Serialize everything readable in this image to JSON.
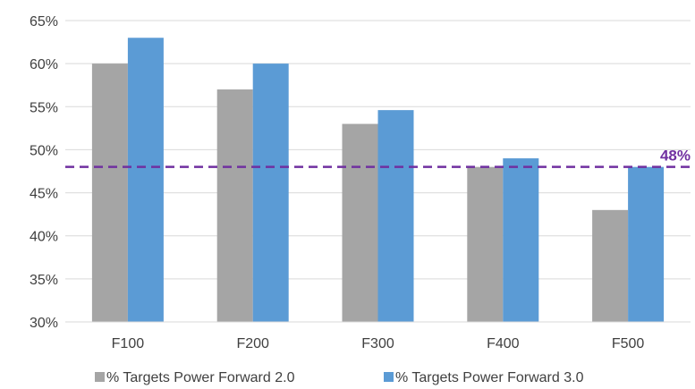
{
  "chart_data": {
    "type": "bar",
    "categories": [
      "F100",
      "F200",
      "F300",
      "F400",
      "F500"
    ],
    "series": [
      {
        "name": "% Targets Power Forward 2.0",
        "values": [
          60,
          57,
          53,
          48,
          43
        ],
        "color": "#a5a5a5"
      },
      {
        "name": "% Targets Power Forward 3.0",
        "values": [
          63,
          60,
          54.6,
          49,
          48
        ],
        "color": "#5b9bd5"
      }
    ],
    "ylim": [
      30,
      65
    ],
    "yticks": [
      "30%",
      "35%",
      "40%",
      "45%",
      "50%",
      "55%",
      "60%",
      "65%"
    ],
    "ytick_values": [
      30,
      35,
      40,
      45,
      50,
      55,
      60,
      65
    ],
    "reference_line": {
      "value": 48,
      "label": "48%",
      "color": "#7030a0",
      "style": "dashed"
    },
    "grid": true,
    "grid_color": "#d9d9d9",
    "legend_position": "bottom"
  }
}
